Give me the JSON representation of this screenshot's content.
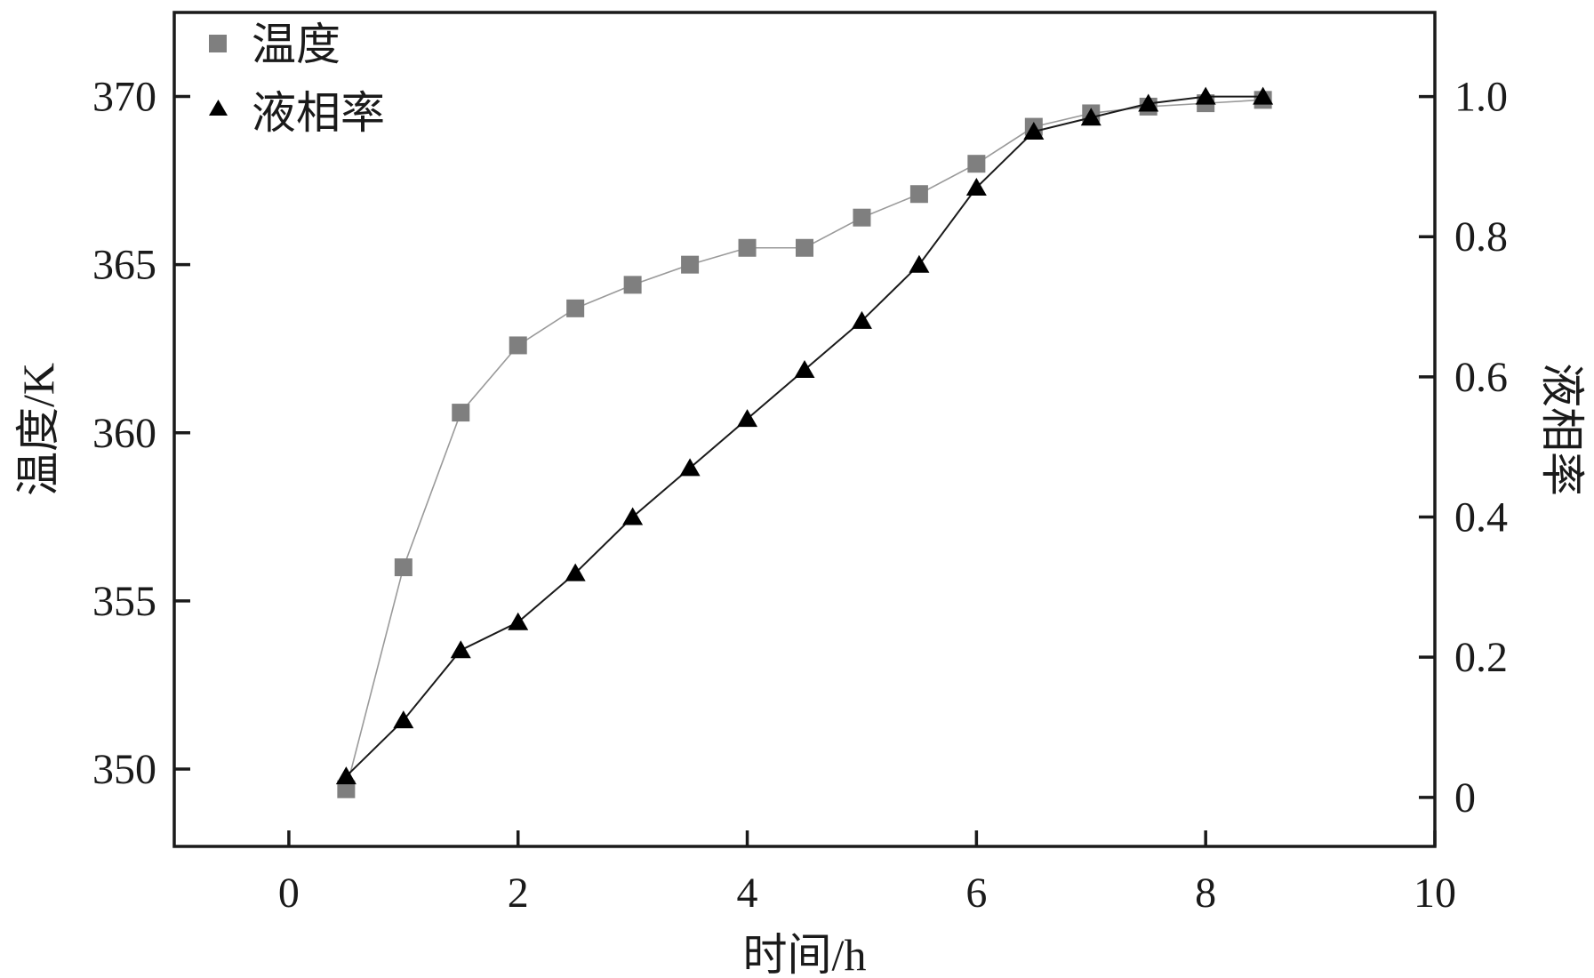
{
  "chart_data": {
    "type": "line",
    "xlabel": "时间/h",
    "ylabel": "温度/K",
    "y2label": "液相率",
    "xlim": [
      -1,
      10
    ],
    "ylim": [
      347.7,
      372.5
    ],
    "y2lim": [
      -0.07,
      1.12
    ],
    "xticks": [
      0,
      2,
      4,
      6,
      8,
      10
    ],
    "yticks": [
      350,
      355,
      360,
      365,
      370
    ],
    "y2ticks": [
      0,
      0.2,
      0.4,
      0.6,
      0.8,
      1.0
    ],
    "xtick_labels": [
      "0",
      "2",
      "4",
      "6",
      "8",
      "10"
    ],
    "ytick_labels": [
      "350",
      "355",
      "360",
      "365",
      "370"
    ],
    "y2tick_labels": [
      "0",
      "0.2",
      "0.4",
      "0.6",
      "0.8",
      "1.0"
    ],
    "grid": false,
    "legend_position": "top-left",
    "series": [
      {
        "name": "温度",
        "axis": "left",
        "marker": "square",
        "color": "#7f7f7f",
        "line_color": "#9a9a9a",
        "x": [
          0.5,
          1,
          1.5,
          2,
          2.5,
          3,
          3.5,
          4,
          4.5,
          5,
          5.5,
          6,
          6.5,
          7,
          7.5,
          8,
          8.5
        ],
        "values": [
          349.4,
          356.0,
          360.6,
          362.6,
          363.7,
          364.4,
          365.0,
          365.5,
          365.5,
          366.4,
          367.1,
          368.0,
          369.1,
          369.5,
          369.7,
          369.8,
          369.9
        ]
      },
      {
        "name": "液相率",
        "axis": "right",
        "marker": "triangle",
        "color": "#000000",
        "line_color": "#1a1a1a",
        "x": [
          0.5,
          1,
          1.5,
          2,
          2.5,
          3,
          3.5,
          4,
          4.5,
          5,
          5.5,
          6,
          6.5,
          7,
          7.5,
          8,
          8.5
        ],
        "values": [
          0.03,
          0.11,
          0.21,
          0.25,
          0.32,
          0.4,
          0.47,
          0.54,
          0.61,
          0.68,
          0.76,
          0.87,
          0.95,
          0.97,
          0.99,
          1.0,
          1.0
        ]
      }
    ]
  }
}
